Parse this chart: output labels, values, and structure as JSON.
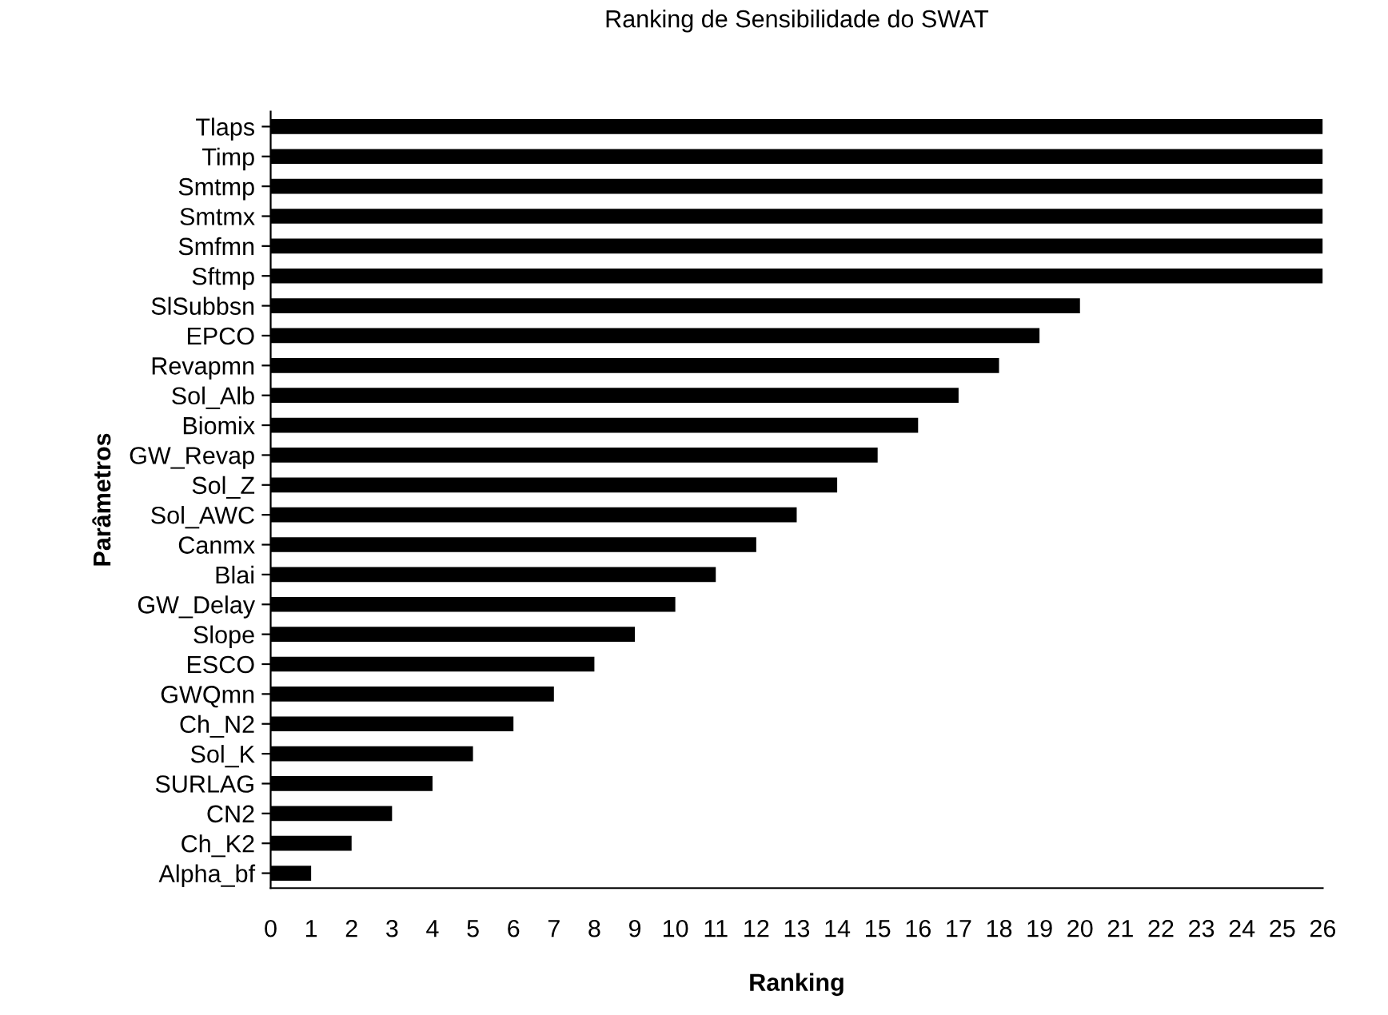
{
  "chart_data": {
    "type": "bar",
    "orientation": "horizontal",
    "title": "Ranking de Sensibilidade do SWAT",
    "xlabel": "Ranking",
    "ylabel": "Parâmetros",
    "categories": [
      "Tlaps",
      "Timp",
      "Smtmp",
      "Smtmx",
      "Smfmn",
      "Sftmp",
      "SlSubbsn",
      "EPCO",
      "Revapmn",
      "Sol_Alb",
      "Biomix",
      "GW_Revap",
      "Sol_Z",
      "Sol_AWC",
      "Canmx",
      "Blai",
      "GW_Delay",
      "Slope",
      "ESCO",
      "GWQmn",
      "Ch_N2",
      "Sol_K",
      "SURLAG",
      "CN2",
      "Ch_K2",
      "Alpha_bf"
    ],
    "values": [
      26,
      26,
      26,
      26,
      26,
      26,
      20,
      19,
      18,
      17,
      16,
      15,
      14,
      13,
      12,
      11,
      10,
      9,
      8,
      7,
      6,
      5,
      4,
      3,
      2,
      1
    ],
    "color": "#000000",
    "xlim": [
      0,
      26
    ],
    "xticks": [
      0,
      1,
      2,
      3,
      4,
      5,
      6,
      7,
      8,
      9,
      10,
      11,
      12,
      13,
      14,
      15,
      16,
      17,
      18,
      19,
      20,
      21,
      22,
      23,
      24,
      25,
      26
    ],
    "grid": false,
    "legend": false
  }
}
